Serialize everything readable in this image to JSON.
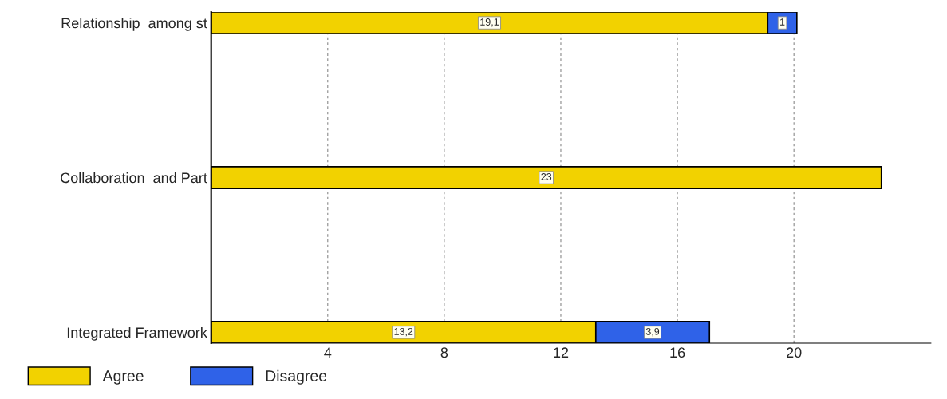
{
  "chart_data": {
    "type": "bar",
    "orientation": "horizontal",
    "stacked": true,
    "categories": [
      "Relationship  among st",
      "Collaboration  and Part",
      "Integrated Framework"
    ],
    "series": [
      {
        "name": "Agree",
        "color": "#f2d200",
        "values": [
          19.1,
          23,
          13.2
        ],
        "value_labels": [
          "19,1",
          "23",
          "13,2"
        ]
      },
      {
        "name": "Disagree",
        "color": "#2f62e8",
        "values": [
          1,
          null,
          3.9
        ],
        "value_labels": [
          "1",
          null,
          "3,9"
        ]
      }
    ],
    "xlim": [
      0,
      24.7
    ],
    "xticks": [
      4,
      8,
      12,
      16,
      20
    ],
    "grid": "x",
    "legend": "bottom left"
  }
}
